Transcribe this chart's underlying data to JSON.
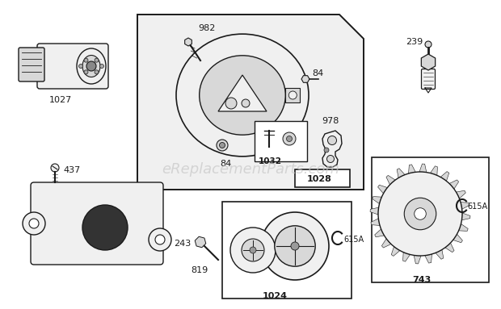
{
  "bg": "#ffffff",
  "lc": "#1a1a1a",
  "box_bg": "#ffffff",
  "light_fill": "#f0f0f0",
  "mid_fill": "#d8d8d8",
  "dark_fill": "#555555",
  "watermark": "eReplacementParts.com",
  "wm_color": "#c8c8c8",
  "wm_size": 13
}
